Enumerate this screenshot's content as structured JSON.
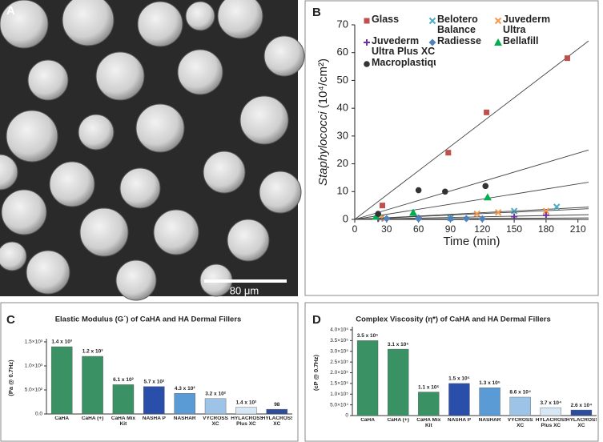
{
  "panel_labels": [
    "A",
    "B",
    "C",
    "D"
  ],
  "scale_bar": "80 μm",
  "chart_data": [
    {
      "type": "scatter",
      "xlabel": "Time (min)",
      "ylabel": {
        "name": "Staphylococci",
        "unit": "(10⁴/cm²)"
      },
      "xlim": [
        0,
        220
      ],
      "xticks": [
        0,
        30,
        60,
        90,
        120,
        150,
        180,
        210
      ],
      "ylim": [
        0,
        70
      ],
      "yticks": [
        0,
        10,
        20,
        30,
        40,
        50,
        60,
        70
      ],
      "fit_lines": true,
      "series": [
        {
          "name": "Glass",
          "color": "#c0504d",
          "marker": "square",
          "x": [
            26,
            88,
            124,
            200
          ],
          "values": [
            5,
            24,
            38.5,
            58
          ]
        },
        {
          "name": "Belotero Balance",
          "color": "#4bacc6",
          "marker": "x",
          "x": [
            28,
            90,
            150,
            190
          ],
          "values": [
            0.3,
            0.5,
            3,
            4.5
          ]
        },
        {
          "name": "Juvederm Ultra",
          "color": "#f79646",
          "marker": "x",
          "x": [
            25,
            115,
            135,
            180
          ],
          "values": [
            0.5,
            2,
            2.5,
            3
          ]
        },
        {
          "name": "Juvederm Ultra Plus XC",
          "color": "#7030a0",
          "marker": "plus",
          "x": [
            22,
            60,
            150,
            180
          ],
          "values": [
            0.2,
            0.5,
            1,
            1.5
          ]
        },
        {
          "name": "Radiesse",
          "color": "#4f81bd",
          "marker": "diamond",
          "x": [
            30,
            60,
            90,
            105,
            120
          ],
          "values": [
            0.3,
            0.2,
            0.2,
            0.3,
            0.2
          ]
        },
        {
          "name": "Bellafill",
          "color": "#00b050",
          "marker": "triangle",
          "x": [
            20,
            55,
            125
          ],
          "values": [
            1,
            2.5,
            8
          ]
        },
        {
          "name": "Macroplastique",
          "color": "#333333",
          "marker": "circle",
          "x": [
            22,
            60,
            85,
            123
          ],
          "values": [
            2,
            10.5,
            10,
            12
          ]
        }
      ]
    },
    {
      "type": "bar",
      "title": "Elastic Modulus (G´) of CaHA and HA Dermal Fillers",
      "ylabel": "(Pa @ 0.7Hz)",
      "categories": [
        "CaHA",
        "CaHA (+)",
        "CaHA Mix Kit",
        "NASHA P",
        "NASHAR",
        "VYCROSS XC",
        "HYLACROSS Plus XC",
        "HYLACROSS XC"
      ],
      "values": [
        1400,
        1200,
        610,
        570,
        430,
        320,
        140,
        98
      ],
      "value_labels": [
        "1.4 x 10³",
        "1.2 x 10³",
        "6.1 x 10²",
        "5.7 x 10²",
        "4.3 x 10²",
        "3.2 x 10²",
        "1.4 x 10²",
        "98"
      ],
      "colors": [
        "#3a9163",
        "#3a9163",
        "#3a9163",
        "#2a4faa",
        "#5b9bd5",
        "#9dc3e6",
        "#d7e7f5",
        "#2c4c9e"
      ],
      "ylim": [
        0,
        1500
      ],
      "yticks": [
        {
          "value": 0,
          "label": "0.0"
        },
        {
          "value": 500,
          "label": "5.0×10²"
        },
        {
          "value": 1000,
          "label": "1.0×10³"
        },
        {
          "value": 1500,
          "label": "1.5×10³"
        }
      ]
    },
    {
      "type": "bar",
      "title": "Complex Viscosity (η*) of CaHA and HA Dermal Fillers",
      "ylabel": "(cP @ 0.7Hz)",
      "categories": [
        "CaHA",
        "CaHA (+)",
        "CaHA Mix Kit",
        "NASHA P",
        "NASHAR",
        "VYCROSS XC",
        "HYLACROSS Plus XC",
        "HYLACROSS XC"
      ],
      "values": [
        350000,
        310000,
        110000,
        150000,
        130000,
        86000,
        37000,
        26000
      ],
      "value_labels": [
        "3.5 x 10⁵",
        "3.1 x 10⁵",
        "1.1 x 10⁵",
        "1.5 x 10⁵",
        "1.3 x 10⁵",
        "8.6 x 10⁴",
        "3.7 x 10⁴",
        "2.6 x 10⁴"
      ],
      "colors": [
        "#3a9163",
        "#3a9163",
        "#3a9163",
        "#2a4faa",
        "#5b9bd5",
        "#9dc3e6",
        "#d7e7f5",
        "#2c4c9e"
      ],
      "ylim": [
        0,
        400000
      ],
      "yticks": [
        0,
        {
          "value": 50000,
          "label": "5.0×10⁴"
        },
        {
          "value": 100000,
          "label": "1.0×10⁵"
        },
        {
          "value": 150000,
          "label": "1.5×10⁵"
        },
        {
          "value": 200000,
          "label": "2.0×10⁵"
        },
        {
          "value": 250000,
          "label": "2.5×10⁵"
        },
        {
          "value": 300000,
          "label": "3.0×10⁵"
        },
        {
          "value": 350000,
          "label": "3.5×10⁵"
        },
        {
          "value": 400000,
          "label": "4.0×10⁵"
        }
      ]
    }
  ]
}
